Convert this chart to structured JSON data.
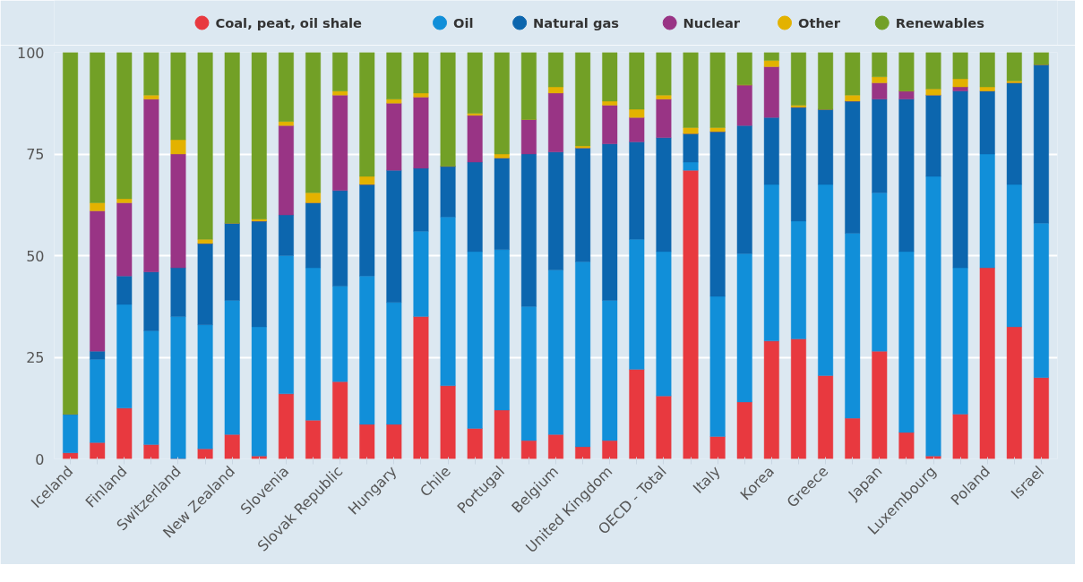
{
  "chart_data": {
    "type": "bar",
    "stacked": true,
    "categories": [
      "Iceland",
      null,
      "Finland",
      null,
      "Switzerland",
      null,
      "New Zealand",
      null,
      "Slovenia",
      null,
      "Slovak Republic",
      null,
      "Hungary",
      null,
      "Chile",
      null,
      "Portugal",
      null,
      "Belgium",
      null,
      "United Kingdom",
      null,
      "OECD - Total",
      null,
      "Italy",
      null,
      "Korea",
      null,
      "Greece",
      null,
      "Japan",
      null,
      "Luxembourg",
      null,
      "Poland",
      null,
      "Israel"
    ],
    "series": [
      {
        "name": "Coal, peat, oil shale",
        "color": "#e8393f",
        "values": [
          1.5,
          4,
          12.5,
          3.5,
          0,
          2.5,
          6,
          0.7,
          16,
          9.5,
          19,
          8.5,
          8.5,
          35,
          18,
          7.5,
          12,
          4.5,
          6,
          3,
          4.5,
          22,
          15.5,
          71,
          5.5,
          14,
          29,
          29.5,
          20.5,
          10,
          26.5,
          6.5,
          0.7,
          11,
          47,
          32.5,
          20
        ]
      },
      {
        "name": "Oil",
        "color": "#118fd9",
        "values": [
          9.5,
          20.5,
          25.5,
          28,
          35,
          30.5,
          33,
          31.8,
          34,
          37.5,
          23.5,
          36.5,
          30,
          21,
          41.5,
          43.5,
          39.5,
          33,
          40.5,
          45.5,
          34.5,
          32,
          35.5,
          2,
          34.5,
          36.5,
          38.5,
          29,
          47,
          45.5,
          39,
          44.5,
          68.8,
          36,
          28,
          35,
          38
        ]
      },
      {
        "name": "Natural gas",
        "color": "#0c66ae",
        "values": [
          0,
          2,
          7,
          14.5,
          12,
          20,
          19,
          26,
          10,
          16,
          23.5,
          22.5,
          32.5,
          15.5,
          12.5,
          22,
          22.5,
          37.5,
          29,
          28,
          38.5,
          24,
          28,
          7,
          40.5,
          31.5,
          16.5,
          28,
          18.5,
          32.5,
          23,
          37.5,
          20,
          43.5,
          15.5,
          25,
          39
        ]
      },
      {
        "name": "Nuclear",
        "color": "#993485",
        "values": [
          0,
          34.5,
          18,
          42.5,
          28,
          0,
          0,
          0,
          22,
          0,
          23.5,
          0,
          16.5,
          17.5,
          0,
          11.5,
          0,
          8.5,
          14.5,
          0,
          9.5,
          6,
          9.5,
          0,
          0,
          10,
          12.5,
          0,
          0,
          0,
          4,
          2,
          0,
          1,
          0,
          0,
          0
        ]
      },
      {
        "name": "Other",
        "color": "#e3b200",
        "values": [
          0,
          2,
          1,
          1,
          3.5,
          1,
          0,
          0.5,
          1,
          2.5,
          1,
          2,
          1,
          1,
          0,
          0.5,
          1,
          0,
          1.5,
          0.5,
          1,
          2,
          1,
          1.5,
          1,
          0,
          1.5,
          0.5,
          0,
          1.5,
          1.5,
          0,
          1.5,
          2,
          1,
          0.5,
          0
        ]
      },
      {
        "name": "Renewables",
        "color": "#72a026",
        "values": [
          89,
          37,
          36,
          10.5,
          21.5,
          46,
          42,
          41,
          17,
          34.5,
          9.5,
          30.5,
          11.5,
          10,
          28,
          15,
          25,
          16.5,
          8.5,
          23,
          12,
          14,
          10.5,
          18.5,
          18.5,
          8,
          2,
          13,
          14,
          10.5,
          6,
          9.5,
          9,
          6.5,
          8.5,
          7,
          3
        ]
      }
    ],
    "ylim": [
      0,
      100
    ],
    "yticks": [
      0,
      25,
      50,
      75,
      100
    ],
    "grid": "y",
    "legend": "top"
  }
}
